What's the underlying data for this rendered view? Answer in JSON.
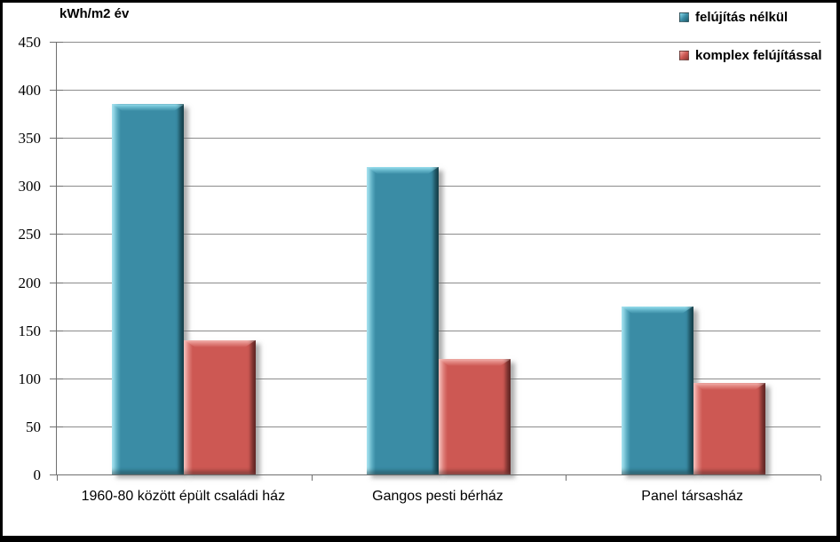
{
  "chart": {
    "title": "kWh/m2 év"
  },
  "chart_data": {
    "type": "bar",
    "title": "kWh/m2 év",
    "categories": [
      "1960-80 között épült családi ház",
      "Gangos pesti bérház",
      "Panel társasház"
    ],
    "series": [
      {
        "name": "felújítás nélkül",
        "values": [
          385,
          320,
          175
        ],
        "fill": "#3A8CA5",
        "light": "#8ADBEC",
        "dark": "#1E5D6C"
      },
      {
        "name": "komplex felújítással",
        "values": [
          140,
          120,
          95
        ],
        "fill": "#CD5853",
        "light": "#F2A9A3",
        "dark": "#8E3834"
      }
    ],
    "xlabel": "",
    "ylabel": "kWh/m2 év",
    "ylim": [
      0,
      450
    ],
    "ytick_step": 50,
    "grid": true,
    "legend_position": "top-right",
    "axis_color": "#6F6F6F",
    "grid_color": "#8C8C8C",
    "background": "#FFFFFF",
    "border_color": "#000000"
  }
}
